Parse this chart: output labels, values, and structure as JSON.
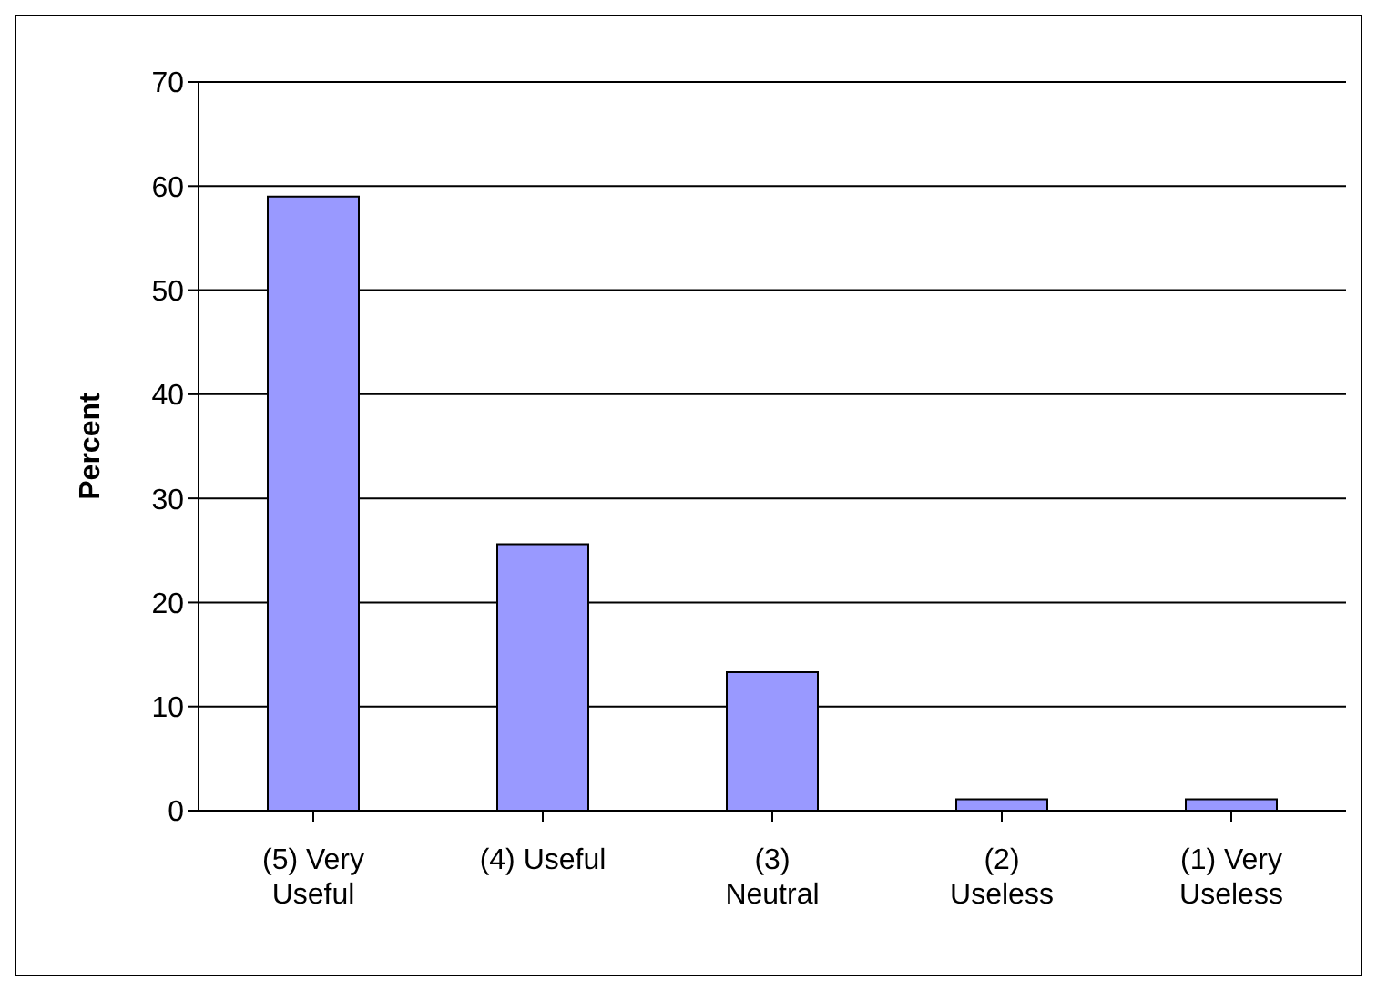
{
  "chart_data": {
    "type": "bar",
    "ylabel": "Percent",
    "categories": [
      "(5) Very Useful",
      "(4) Useful",
      "(3) Neutral",
      "(2) Useless",
      "(1) Very Useless"
    ],
    "values": [
      59,
      25.6,
      13.3,
      1.1,
      1.1
    ],
    "color": "#9999ff",
    "ylim": [
      0,
      70
    ],
    "yticks": [
      0,
      10,
      20,
      30,
      40,
      50,
      60,
      70
    ],
    "grid": "y"
  }
}
